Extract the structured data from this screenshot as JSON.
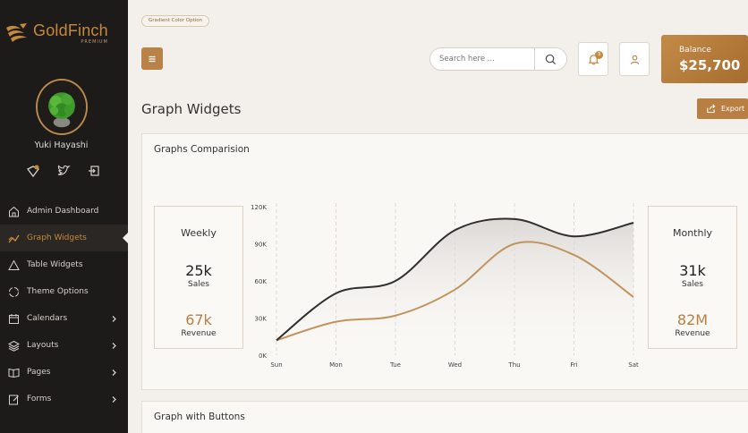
{
  "brand": {
    "name": "GoldFinch",
    "sub": "PREMIUM"
  },
  "user": {
    "name": "Yuki Hayashi"
  },
  "sidebar": {
    "items": [
      {
        "label": "Admin Dashboard",
        "icon": "home-icon",
        "arrow": false,
        "active": false
      },
      {
        "label": "Graph Widgets",
        "icon": "chart-line-icon",
        "arrow": false,
        "active": true
      },
      {
        "label": "Table Widgets",
        "icon": "triangle-icon",
        "arrow": false,
        "active": false
      },
      {
        "label": "Theme Options",
        "icon": "circle-dashed-icon",
        "arrow": false,
        "active": false
      },
      {
        "label": "Calendars",
        "icon": "calendar-icon",
        "arrow": true,
        "active": false
      },
      {
        "label": "Layouts",
        "icon": "layers-icon",
        "arrow": true,
        "active": false
      },
      {
        "label": "Pages",
        "icon": "book-icon",
        "arrow": true,
        "active": false
      },
      {
        "label": "Forms",
        "icon": "edit-icon",
        "arrow": true,
        "active": false
      }
    ]
  },
  "topbar": {
    "pill": "Gradient Color Option",
    "search_placeholder": "Search here ...",
    "notification_count": "3",
    "balance_label": "Balance",
    "balance_value": "$25,700"
  },
  "page": {
    "title": "Graph Widgets",
    "export_label": "Export"
  },
  "card": {
    "title": "Graphs Comparision",
    "weekly": {
      "period": "Weekly",
      "sales_value": "25k",
      "sales_label": "Sales",
      "revenue_value": "67k",
      "revenue_label": "Revenue"
    },
    "monthly": {
      "period": "Monthly",
      "sales_value": "31k",
      "sales_label": "Sales",
      "revenue_value": "82M",
      "revenue_label": "Revenue"
    }
  },
  "card2": {
    "title": "Graph with Buttons"
  },
  "colors": {
    "accent": "#b97e42",
    "sidebar": "#1d1b1a",
    "line_dark": "#2f2f2f",
    "line_gold": "#c0945c"
  },
  "chart_data": {
    "type": "area",
    "categories": [
      "Sun",
      "Mon",
      "Tue",
      "Wed",
      "Thu",
      "Fri",
      "Sat"
    ],
    "series": [
      {
        "values": [
          12000,
          50000,
          60000,
          101000,
          110000,
          96000,
          107000
        ]
      },
      {
        "values": [
          12000,
          27000,
          32000,
          53000,
          90000,
          81000,
          47000
        ]
      }
    ],
    "yticks": [
      "0K",
      "30K",
      "60K",
      "90K",
      "120K"
    ],
    "ylim": [
      0,
      120000
    ],
    "grid": "vertical dashed"
  }
}
